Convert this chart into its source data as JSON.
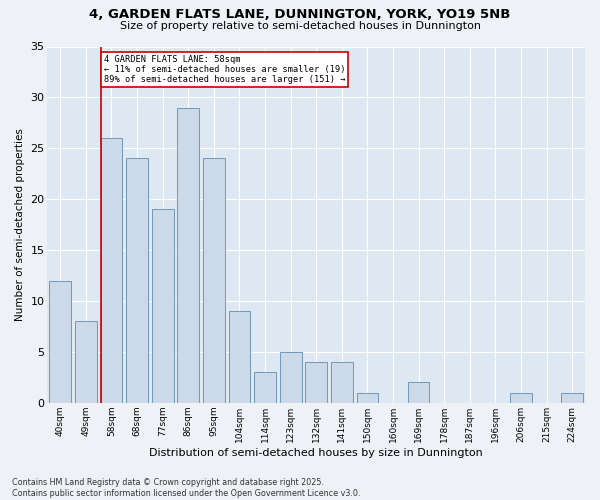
{
  "title_line1": "4, GARDEN FLATS LANE, DUNNINGTON, YORK, YO19 5NB",
  "title_line2": "Size of property relative to semi-detached houses in Dunnington",
  "xlabel": "Distribution of semi-detached houses by size in Dunnington",
  "ylabel": "Number of semi-detached properties",
  "categories": [
    "40sqm",
    "49sqm",
    "58sqm",
    "68sqm",
    "77sqm",
    "86sqm",
    "95sqm",
    "104sqm",
    "114sqm",
    "123sqm",
    "132sqm",
    "141sqm",
    "150sqm",
    "160sqm",
    "169sqm",
    "178sqm",
    "187sqm",
    "196sqm",
    "206sqm",
    "215sqm",
    "224sqm"
  ],
  "values": [
    12,
    8,
    26,
    24,
    19,
    29,
    24,
    9,
    3,
    5,
    4,
    4,
    1,
    0,
    2,
    0,
    0,
    0,
    1,
    0,
    1
  ],
  "bar_color": "#ccd9e8",
  "bar_edge_color": "#7098b8",
  "highlight_bar_index": 2,
  "vline_color": "#cc0000",
  "annotation_title": "4 GARDEN FLATS LANE: 58sqm",
  "annotation_line1": "← 11% of semi-detached houses are smaller (19)",
  "annotation_line2": "89% of semi-detached houses are larger (151) →",
  "ylim": [
    0,
    35
  ],
  "yticks": [
    0,
    5,
    10,
    15,
    20,
    25,
    30,
    35
  ],
  "footer_line1": "Contains HM Land Registry data © Crown copyright and database right 2025.",
  "footer_line2": "Contains public sector information licensed under the Open Government Licence v3.0.",
  "bg_color": "#eef2f7",
  "plot_bg_color": "#dde8f2"
}
